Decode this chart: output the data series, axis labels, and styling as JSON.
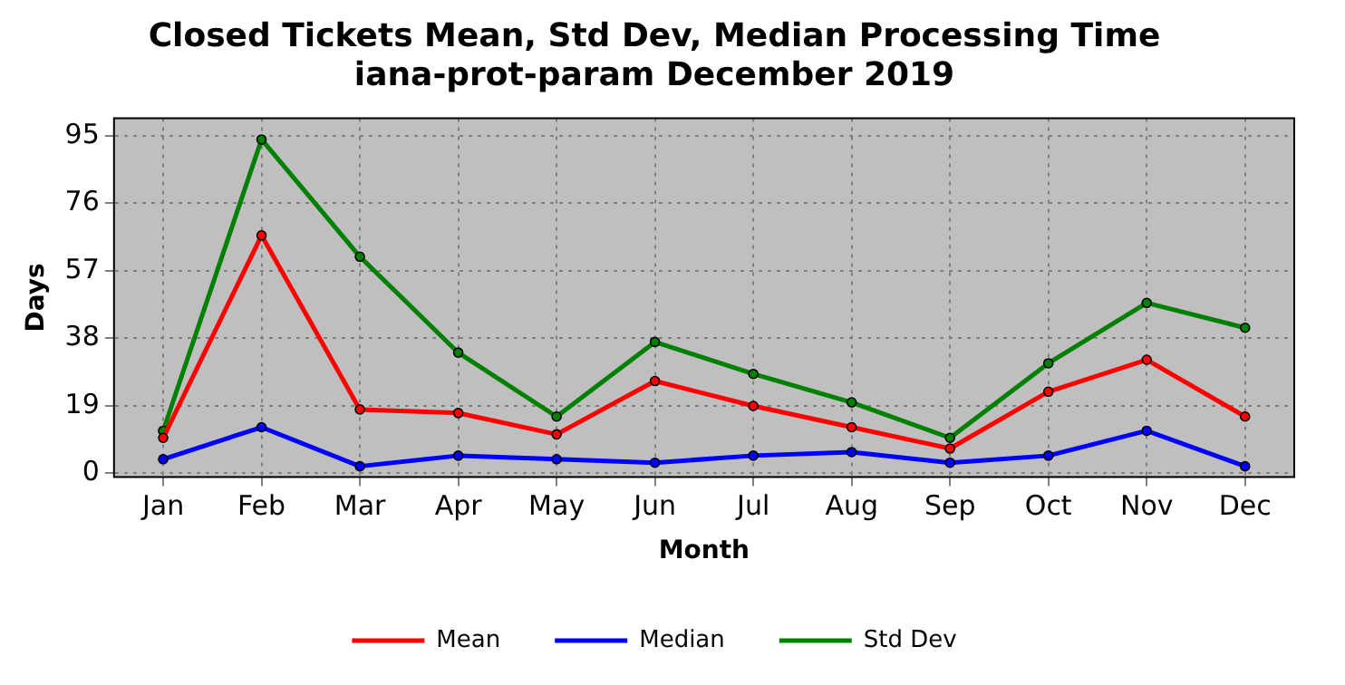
{
  "chart_data": {
    "type": "line",
    "title": "Closed Tickets Mean, Std Dev, Median Processing Time",
    "subtitle": "iana-prot-param December 2019",
    "xlabel": "Month",
    "ylabel": "Days",
    "categories": [
      "Jan",
      "Feb",
      "Mar",
      "Apr",
      "May",
      "Jun",
      "Jul",
      "Aug",
      "Sep",
      "Oct",
      "Nov",
      "Dec"
    ],
    "series": [
      {
        "name": "Mean",
        "color": "#ff0000",
        "values": [
          10,
          67,
          18,
          17,
          11,
          26,
          19,
          13,
          7,
          23,
          32,
          16
        ]
      },
      {
        "name": "Median",
        "color": "#0000ff",
        "values": [
          4,
          13,
          2,
          5,
          4,
          3,
          5,
          6,
          3,
          5,
          12,
          2
        ]
      },
      {
        "name": "Std Dev",
        "color": "#008000",
        "values": [
          12,
          94,
          61,
          34,
          16,
          37,
          28,
          20,
          10,
          31,
          48,
          41
        ]
      }
    ],
    "ylim": [
      -1,
      100
    ],
    "yticks": [
      0,
      19,
      38,
      57,
      76,
      95
    ],
    "grid": true,
    "legend": "bottom",
    "marker": "circle",
    "line_style": "solid"
  }
}
